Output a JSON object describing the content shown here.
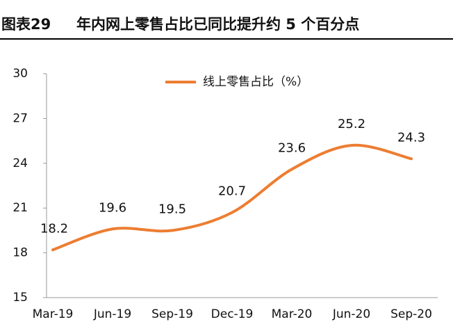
{
  "chart_data": {
    "type": "line",
    "figure_label": "图表29",
    "title": "年内网上零售占比已同比提升约 5 个百分点",
    "categories": [
      "Mar-19",
      "Jun-19",
      "Sep-19",
      "Dec-19",
      "Mar-20",
      "Jun-20",
      "Sep-20"
    ],
    "series": [
      {
        "name": "线上零售占比（%）",
        "color": "#ed7d31",
        "values": [
          18.2,
          19.6,
          19.5,
          20.7,
          23.6,
          25.2,
          24.3
        ]
      }
    ],
    "ylim": [
      15,
      30
    ],
    "yticks": [
      15,
      18,
      21,
      24,
      27,
      30
    ],
    "grid": false,
    "legend": "top"
  }
}
